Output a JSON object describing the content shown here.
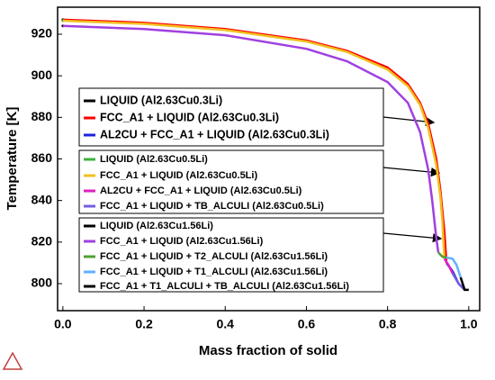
{
  "chart_data": {
    "type": "line",
    "xlabel": "Mass fraction of solid",
    "ylabel": "Temperature [K]",
    "xlim": [
      -0.013,
      1.027
    ],
    "ylim": [
      787,
      933
    ],
    "xticks": [
      {
        "value": 0,
        "label": "0.0"
      },
      0.2,
      0.4,
      0.6,
      0.8,
      {
        "value": 1,
        "label": "1.0"
      }
    ],
    "yticks": [
      800,
      820,
      840,
      860,
      880,
      900,
      920
    ],
    "series": [
      {
        "name": "LIQUID (Al2.63Cu0.3Li)",
        "color": "#000000",
        "x": [
          0
        ],
        "values": [
          927
        ]
      },
      {
        "name": "FCC_A1 + LIQUID (Al2.63Cu0.3Li)",
        "color": "#ff0000",
        "x": [
          0,
          0.2,
          0.4,
          0.6,
          0.7,
          0.8,
          0.85,
          0.88,
          0.9,
          0.92,
          0.93,
          0.94,
          0.945
        ],
        "values": [
          927,
          925.5,
          922.5,
          917,
          912,
          904,
          896,
          887,
          877,
          860,
          845,
          825,
          810
        ]
      },
      {
        "name": "AL2CU + FCC_A1 + LIQUID (Al2.63Cu0.3Li)",
        "color": "#2020e0",
        "x": [
          0.945,
          0.96,
          0.975,
          0.99
        ],
        "values": [
          810,
          806,
          800,
          797
        ]
      },
      {
        "name": "LIQUID (Al2.63Cu0.5Li)",
        "color": "#40b040",
        "x": [
          0
        ],
        "values": [
          926.5
        ]
      },
      {
        "name": "FCC_A1 + LIQUID (Al2.63Cu0.5Li)",
        "color": "#f0c020",
        "x": [
          0,
          0.2,
          0.4,
          0.6,
          0.7,
          0.8,
          0.85,
          0.88,
          0.9,
          0.92,
          0.93,
          0.935,
          0.94
        ],
        "values": [
          926.5,
          925,
          922,
          916.5,
          911.5,
          903,
          895,
          886,
          875,
          857,
          842,
          830,
          812
        ]
      },
      {
        "name": "AL2CU + FCC_A1 + LIQUID (Al2.63Cu0.5Li)",
        "color": "#e020c0",
        "x": [
          0.94,
          0.95,
          0.96
        ],
        "values": [
          812,
          809,
          805
        ]
      },
      {
        "name": "FCC_A1 + LIQUID + TB_ALCULI (Al2.63Cu0.5Li)",
        "color": "#7060e0",
        "x": [
          0.96,
          0.975,
          0.99
        ],
        "values": [
          805,
          800,
          797
        ]
      },
      {
        "name": "LIQUID (Al2.63Cu1.56Li)",
        "color": "#000000",
        "x": [
          0
        ],
        "values": [
          924
        ]
      },
      {
        "name": "FCC_A1 + LIQUID (Al2.63Cu1.56Li)",
        "color": "#a040e0",
        "x": [
          0,
          0.2,
          0.4,
          0.6,
          0.7,
          0.8,
          0.85,
          0.88,
          0.9,
          0.91,
          0.92,
          0.925
        ],
        "values": [
          924,
          922.5,
          919.5,
          913,
          907,
          897,
          887,
          873,
          855,
          840,
          822,
          815
        ]
      },
      {
        "name": "FCC_A1 + LIQUID + T2_ALCULI (Al2.63Cu1.56Li)",
        "color": "#50a030",
        "x": [
          0.925,
          0.935,
          0.945
        ],
        "values": [
          815,
          813,
          812.5
        ]
      },
      {
        "name": "FCC_A1 + LIQUID + T1_ALCULI (Al2.63Cu1.56Li)",
        "color": "#60b0ff",
        "x": [
          0.945,
          0.96,
          0.97,
          0.98
        ],
        "values": [
          812.5,
          812,
          809,
          803
        ]
      },
      {
        "name": "FCC_A1 + T1_ALCULI + TB_ALCULI (Al2.63Cu1.56Li)",
        "color": "#000000",
        "x": [
          0.98,
          0.99,
          1.0
        ],
        "values": [
          803,
          797,
          797
        ]
      }
    ]
  }
}
